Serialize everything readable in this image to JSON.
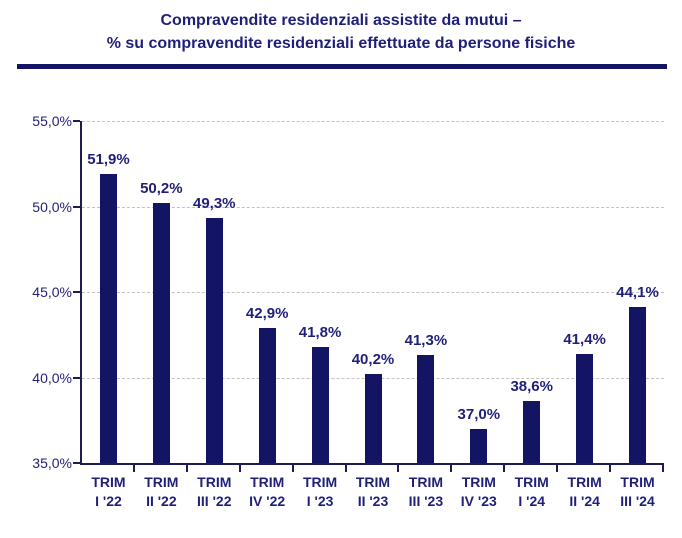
{
  "title": {
    "line1": "Compravendite residenziali assistite da mutui –",
    "line2": "% su compravendite residenziali effettuate da persone fisiche"
  },
  "colors": {
    "text_navy": "#1f1f7a",
    "bar_navy": "#141464",
    "axis": "#1c1c52",
    "gridline": "#c3c3c3",
    "background": "#ffffff"
  },
  "chart_data": {
    "type": "bar",
    "title": "Compravendite residenziali assistite da mutui – % su compravendite residenziali effettuate da persone fisiche",
    "categories": [
      "TRIM I '22",
      "TRIM II '22",
      "TRIM III '22",
      "TRIM IV '22",
      "TRIM I '23",
      "TRIM II '23",
      "TRIM III '23",
      "TRIM IV '23",
      "TRIM I '24",
      "TRIM II '24",
      "TRIM III '24"
    ],
    "category_labels": [
      [
        "TRIM",
        "I '22"
      ],
      [
        "TRIM",
        "II '22"
      ],
      [
        "TRIM",
        "III '22"
      ],
      [
        "TRIM",
        "IV '22"
      ],
      [
        "TRIM",
        "I '23"
      ],
      [
        "TRIM",
        "II '23"
      ],
      [
        "TRIM",
        "III '23"
      ],
      [
        "TRIM",
        "IV '23"
      ],
      [
        "TRIM",
        "I '24"
      ],
      [
        "TRIM",
        "II '24"
      ],
      [
        "TRIM",
        "III '24"
      ]
    ],
    "values": [
      51.9,
      50.2,
      49.3,
      42.9,
      41.8,
      40.2,
      41.3,
      37.0,
      38.6,
      41.4,
      44.1
    ],
    "value_labels": [
      "51,9%",
      "50,2%",
      "49,3%",
      "42,9%",
      "41,8%",
      "40,2%",
      "41,3%",
      "37,0%",
      "38,6%",
      "41,4%",
      "44,1%"
    ],
    "xlabel": "",
    "ylabel": "",
    "ylim": [
      35,
      55
    ],
    "yticks": [
      35,
      40,
      45,
      50,
      55
    ],
    "ytick_labels": [
      "35,0%",
      "40,0%",
      "45,0%",
      "50,0%",
      "55,0%"
    ],
    "grid": "horizontal-dashed",
    "legend": "none"
  }
}
